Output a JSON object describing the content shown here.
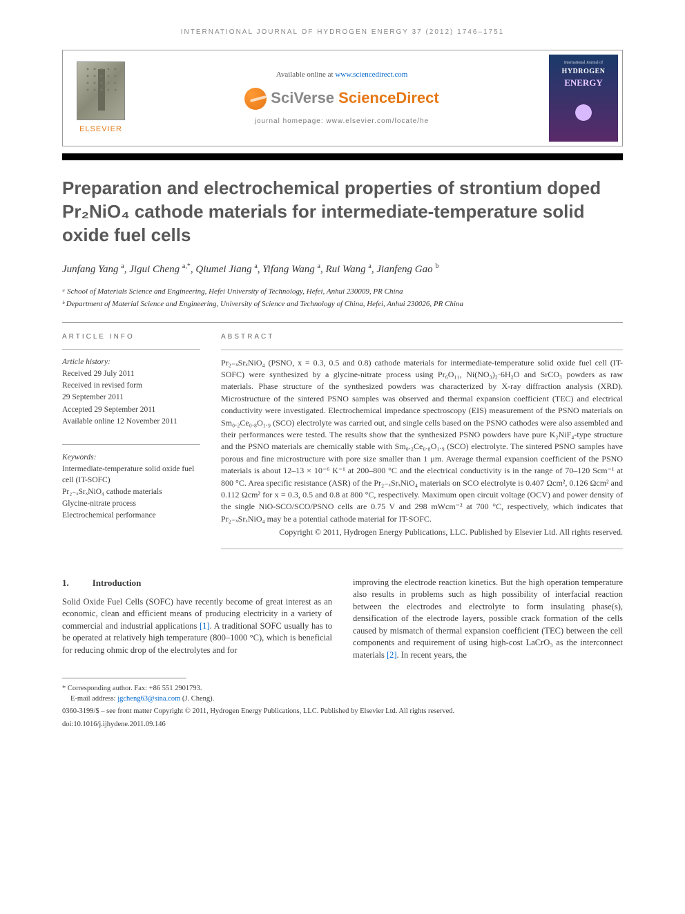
{
  "journal_header": "INTERNATIONAL JOURNAL OF HYDROGEN ENERGY 37 (2012) 1746–1751",
  "top": {
    "elsevier": "ELSEVIER",
    "available_prefix": "Available online at ",
    "available_url": "www.sciencedirect.com",
    "sciverse_a": "SciVerse ",
    "sciverse_b": "ScienceDirect",
    "homepage": "journal homepage: www.elsevier.com/locate/he",
    "cover_small": "International Journal of",
    "cover_h": "HYDROGEN",
    "cover_e": "ENERGY"
  },
  "title": "Preparation and electrochemical properties of strontium doped Pr₂NiO₄ cathode materials for intermediate-temperature solid oxide fuel cells",
  "authors_html": "Junfang Yang <sup>a</sup>, Jigui Cheng <sup>a,*</sup>, Qiumei Jiang <sup>a</sup>, Yifang Wang <sup>a</sup>, Rui Wang <sup>a</sup>, Jianfeng Gao <sup>b</sup>",
  "affiliations": [
    "ᵃ School of Materials Science and Engineering, Hefei University of Technology, Hefei, Anhui 230009, PR China",
    "ᵇ Department of Material Science and Engineering, University of Science and Technology of China, Hefei, Anhui 230026, PR China"
  ],
  "article_info": {
    "head": "ARTICLE INFO",
    "history_label": "Article history:",
    "history": [
      "Received 29 July 2011",
      "Received in revised form",
      "29 September 2011",
      "Accepted 29 September 2011",
      "Available online 12 November 2011"
    ],
    "keywords_label": "Keywords:",
    "keywords": [
      "Intermediate-temperature solid oxide fuel cell (IT-SOFC)",
      "Pr₂₋ₓSrₓNiO₄ cathode materials",
      "Glycine-nitrate process",
      "Electrochemical performance"
    ]
  },
  "abstract": {
    "head": "ABSTRACT",
    "body": "Pr₂₋ₓSrₓNiO₄ (PSNO, x = 0.3, 0.5 and 0.8) cathode materials for intermediate-temperature solid oxide fuel cell (IT-SOFC) were synthesized by a glycine-nitrate process using Pr₆O₁₁, Ni(NO₃)₂·6H₂O and SrCO₃ powders as raw materials. Phase structure of the synthesized powders was characterized by X-ray diffraction analysis (XRD). Microstructure of the sintered PSNO samples was observed and thermal expansion coefficient (TEC) and electrical conductivity were investigated. Electrochemical impedance spectroscopy (EIS) measurement of the PSNO materials on Sm₀.₂Ce₀.₈O₁.₉ (SCO) electrolyte was carried out, and single cells based on the PSNO cathodes were also assembled and their performances were tested. The results show that the synthesized PSNO powders have pure K₂NiF₄-type structure and the PSNO materials are chemically stable with Sm₀.₂Ce₀.₈O₁.₉ (SCO) electrolyte. The sintered PSNO samples have porous and fine microstructure with pore size smaller than 1 μm. Average thermal expansion coefficient of the PSNO materials is about 12–13 × 10⁻⁶ K⁻¹ at 200–800 °C and the electrical conductivity is in the range of 70–120 Scm⁻¹ at 800 °C. Area specific resistance (ASR) of the Pr₂₋ₓSrₓNiO₄ materials on SCO electrolyte is 0.407 Ωcm², 0.126 Ωcm² and 0.112 Ωcm² for x = 0.3, 0.5 and 0.8 at 800 °C, respectively. Maximum open circuit voltage (OCV) and power density of the single NiO-SCO/SCO/PSNO cells are 0.75 V and 298 mWcm⁻² at 700 °C, respectively, which indicates that Pr₂₋ₓSrₓNiO₄ may be a potential cathode material for IT-SOFC.",
    "copyright": "Copyright © 2011, Hydrogen Energy Publications, LLC. Published by Elsevier Ltd. All rights reserved."
  },
  "section": {
    "num": "1.",
    "title": "Introduction"
  },
  "body_left": "Solid Oxide Fuel Cells (SOFC) have recently become of great interest as an economic, clean and efficient means of producing electricity in a variety of commercial and industrial applications [1]. A traditional SOFC usually has to be operated at relatively high temperature (800–1000 °C), which is beneficial for reducing ohmic drop of the electrolytes and for",
  "body_right": "improving the electrode reaction kinetics. But the high operation temperature also results in problems such as high possibility of interfacial reaction between the electrodes and electrolyte to form insulating phase(s), densification of the electrode layers, possible crack formation of the cells caused by mismatch of thermal expansion coefficient (TEC) between the cell components and requirement of using high-cost LaCrO₃ as the interconnect materials [2]. In recent years, the",
  "ref1": "[1]",
  "ref2": "[2]",
  "footer": {
    "corr_label": "* Corresponding author.",
    "corr_fax": " Fax: +86 551 2901793.",
    "email_label": "E-mail address: ",
    "email": "jgcheng63@sina.com",
    "email_who": " (J. Cheng).",
    "issn": "0360-3199/$ – see front matter Copyright © 2011, Hydrogen Energy Publications, LLC. Published by Elsevier Ltd. All rights reserved.",
    "doi": "doi:10.1016/j.ijhydene.2011.09.146"
  },
  "colors": {
    "orange": "#e67817",
    "link": "#0066cc",
    "title_gray": "#585858"
  }
}
